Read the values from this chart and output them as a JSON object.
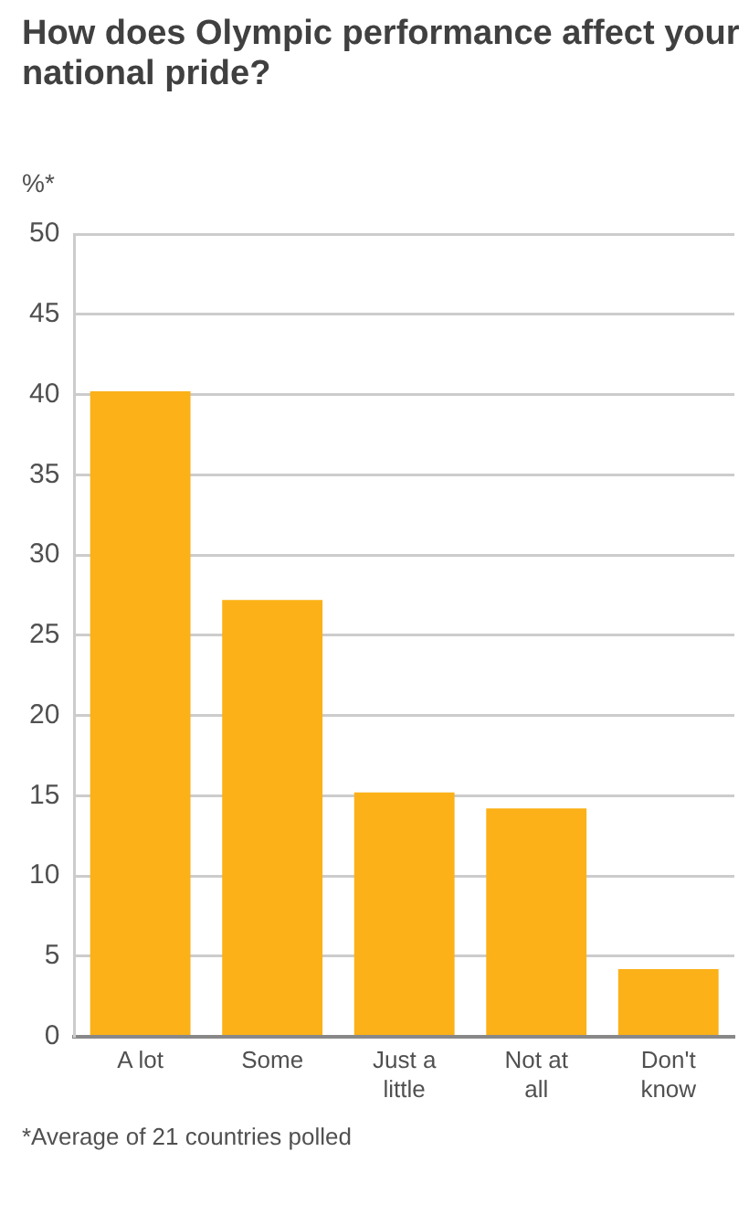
{
  "chart_data": {
    "type": "bar",
    "title": "How does Olympic performance affect your national pride?",
    "ylabel": "%*",
    "categories": [
      "A lot",
      "Some",
      "Just a little",
      "Not at all",
      "Don't know"
    ],
    "values": [
      40.2,
      27.2,
      15.2,
      14.2,
      4.2
    ],
    "color": "#fbb117",
    "ylim": [
      0,
      50
    ],
    "yticks": [
      0,
      5,
      10,
      15,
      20,
      25,
      30,
      35,
      40,
      45,
      50
    ],
    "grid": "y",
    "legend": false,
    "annotations": [
      "*Average of 21 countries polled"
    ]
  }
}
